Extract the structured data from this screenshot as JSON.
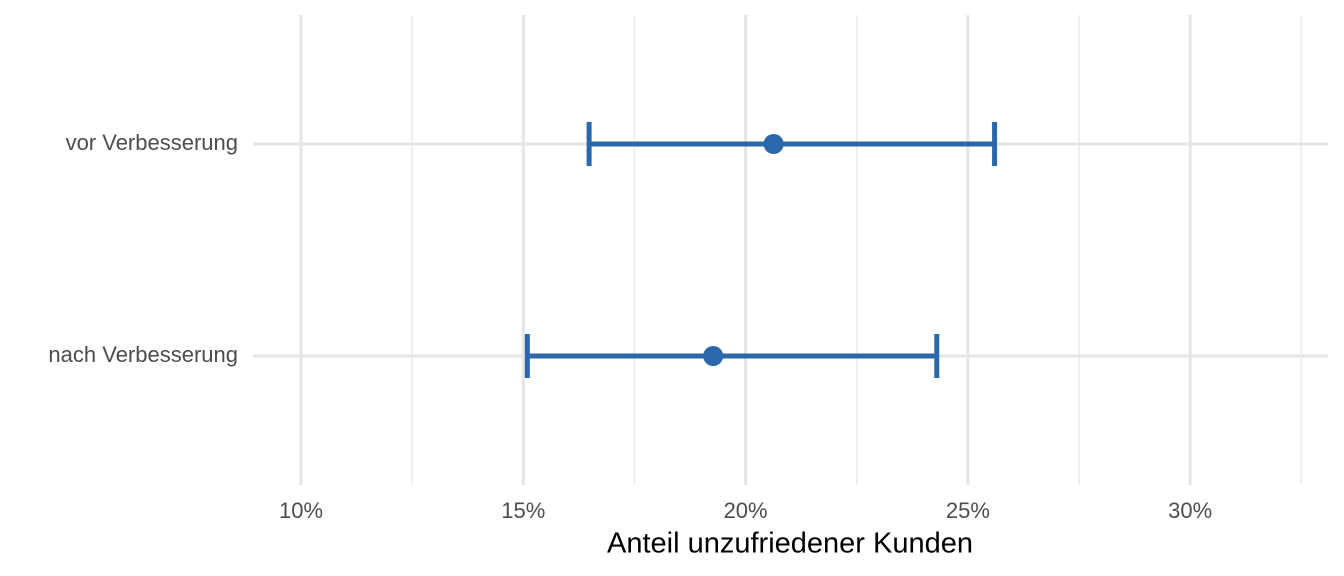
{
  "chart_data": {
    "type": "errorbar",
    "xlabel": "Anteil unzufriedener Kunden",
    "categories": [
      "vor Verbesserung",
      "nach Verbesserung"
    ],
    "values": [
      20.63,
      19.27
    ],
    "lower": [
      16.48,
      15.09
    ],
    "upper": [
      25.6,
      24.3
    ],
    "color": "#2a68ab",
    "xlim": [
      8.92,
      33.1
    ],
    "xticks": [
      {
        "value": 10,
        "label": "10%"
      },
      {
        "value": 15,
        "label": "15%"
      },
      {
        "value": 20,
        "label": "20%"
      },
      {
        "value": 25,
        "label": "25%"
      },
      {
        "value": 30,
        "label": "30%"
      }
    ],
    "xminorticks": [
      12.5,
      17.5,
      22.5,
      27.5,
      32.5
    ],
    "grid": true
  }
}
